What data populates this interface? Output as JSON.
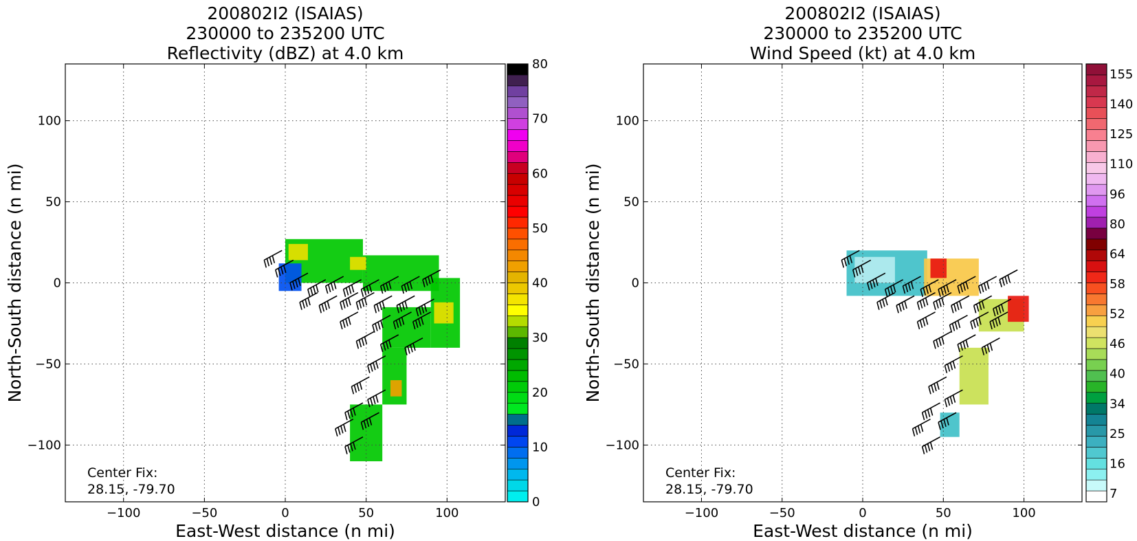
{
  "chart_data": [
    {
      "type": "heatmap",
      "title": [
        "200802I2 (ISAIAS)",
        "230000 to 235200 UTC",
        "Reflectivity (dBZ) at 4.0 km"
      ],
      "xlabel": "East-West distance (n mi)",
      "ylabel": "North-South distance (n mi)",
      "xlim": [
        -136,
        136
      ],
      "ylim": [
        -135,
        135
      ],
      "x_ticks": [
        -100,
        -50,
        0,
        50,
        100
      ],
      "y_ticks": [
        -100,
        -50,
        0,
        50,
        100
      ],
      "x_tick_labels": [
        "−100",
        "−50",
        "0",
        "50",
        "100"
      ],
      "y_tick_labels": [
        "−100",
        "−50",
        "0",
        "50",
        "100"
      ],
      "grid": true,
      "annotation": [
        "Center Fix:",
        "28.15, -79.70"
      ],
      "colorbar": {
        "label": "",
        "min": 0,
        "max": 80,
        "tick_values": [
          0,
          10,
          20,
          30,
          40,
          50,
          60,
          70,
          80
        ],
        "tick_labels": [
          "0",
          "10",
          "20",
          "30",
          "40",
          "50",
          "60",
          "70",
          "80"
        ],
        "colors": [
          "#00eeee",
          "#00d8e8",
          "#00b8ee",
          "#0096ee",
          "#006ef0",
          "#0046f0",
          "#0028d8",
          "#006e8c",
          "#00e820",
          "#00dc14",
          "#00cc08",
          "#00bc00",
          "#00a800",
          "#009400",
          "#008000",
          "#5cb800",
          "#b4dc00",
          "#ffff00",
          "#f4e400",
          "#ecc800",
          "#e4b400",
          "#f0a000",
          "#f48800",
          "#fa6e00",
          "#ff5000",
          "#ff2800",
          "#ff0000",
          "#ea0000",
          "#d80000",
          "#c80000",
          "#c80022",
          "#e0007c",
          "#f000c8",
          "#f000f0",
          "#d040e0",
          "#b050d0",
          "#9060c0",
          "#7040a0",
          "#402050",
          "#000000"
        ]
      },
      "field": {
        "value_colors": {
          "low": "#0050f0",
          "mid": "#00c800",
          "high": "#e8e000",
          "peak": "#f0a000"
        },
        "regions": [
          {
            "x": [
              0,
              48
            ],
            "y": [
              0,
              27
            ],
            "level": "mid"
          },
          {
            "x": [
              48,
              95
            ],
            "y": [
              -5,
              17
            ],
            "level": "mid"
          },
          {
            "x": [
              90,
              108
            ],
            "y": [
              -40,
              3
            ],
            "level": "mid"
          },
          {
            "x": [
              60,
              90
            ],
            "y": [
              -40,
              -15
            ],
            "level": "mid"
          },
          {
            "x": [
              60,
              75
            ],
            "y": [
              -75,
              -40
            ],
            "level": "mid"
          },
          {
            "x": [
              40,
              60
            ],
            "y": [
              -110,
              -75
            ],
            "level": "mid"
          },
          {
            "x": [
              -4,
              10
            ],
            "y": [
              -5,
              12
            ],
            "level": "low"
          },
          {
            "x": [
              2,
              14
            ],
            "y": [
              14,
              24
            ],
            "level": "high"
          },
          {
            "x": [
              40,
              50
            ],
            "y": [
              8,
              16
            ],
            "level": "high"
          },
          {
            "x": [
              92,
              104
            ],
            "y": [
              -25,
              -12
            ],
            "level": "high"
          },
          {
            "x": [
              65,
              72
            ],
            "y": [
              -70,
              -60
            ],
            "level": "peak"
          }
        ]
      },
      "wind_barbs": [
        {
          "x": -2,
          "y": 20
        },
        {
          "x": 5,
          "y": 14
        },
        {
          "x": 14,
          "y": 6
        },
        {
          "x": 25,
          "y": 2
        },
        {
          "x": 36,
          "y": 4
        },
        {
          "x": 47,
          "y": 2
        },
        {
          "x": 58,
          "y": 2
        },
        {
          "x": 70,
          "y": 4
        },
        {
          "x": 83,
          "y": 4
        },
        {
          "x": 96,
          "y": 8
        },
        {
          "x": 20,
          "y": -6
        },
        {
          "x": 32,
          "y": -8
        },
        {
          "x": 45,
          "y": -6
        },
        {
          "x": 55,
          "y": -6
        },
        {
          "x": 66,
          "y": -8
        },
        {
          "x": 80,
          "y": -8
        },
        {
          "x": 92,
          "y": -10
        },
        {
          "x": 45,
          "y": -18
        },
        {
          "x": 65,
          "y": -20
        },
        {
          "x": 78,
          "y": -18
        },
        {
          "x": 90,
          "y": -18
        },
        {
          "x": 55,
          "y": -30
        },
        {
          "x": 70,
          "y": -32
        },
        {
          "x": 85,
          "y": -34
        },
        {
          "x": 62,
          "y": -45
        },
        {
          "x": 52,
          "y": -58
        },
        {
          "x": 62,
          "y": -66
        },
        {
          "x": 48,
          "y": -74
        },
        {
          "x": 58,
          "y": -80
        },
        {
          "x": 42,
          "y": -84
        },
        {
          "x": 48,
          "y": -95
        }
      ]
    },
    {
      "type": "heatmap",
      "title": [
        "200802I2 (ISAIAS)",
        "230000 to 235200 UTC",
        "Wind Speed (kt) at 4.0 km"
      ],
      "xlabel": "East-West distance (n mi)",
      "ylabel": "North-South distance (n mi)",
      "xlim": [
        -136,
        136
      ],
      "ylim": [
        -135,
        135
      ],
      "x_ticks": [
        -100,
        -50,
        0,
        50,
        100
      ],
      "y_ticks": [
        -100,
        -50,
        0,
        50,
        100
      ],
      "x_tick_labels": [
        "−100",
        "−50",
        "0",
        "50",
        "100"
      ],
      "y_tick_labels": [
        "−100",
        "−50",
        "0",
        "50",
        "100"
      ],
      "grid": true,
      "annotation": [
        "Center Fix:",
        "28.15, -79.70"
      ],
      "colorbar": {
        "label": "",
        "tick_labels": [
          "7",
          "16",
          "25",
          "34",
          "40",
          "46",
          "52",
          "58",
          "64",
          "80",
          "96",
          "110",
          "125",
          "140",
          "155"
        ],
        "colors": [
          "#ffffff",
          "#c8fafa",
          "#8cf0f0",
          "#64e0e0",
          "#50c8d0",
          "#3cb0c0",
          "#2898a8",
          "#148494",
          "#007868",
          "#00a040",
          "#28b428",
          "#50c050",
          "#78d050",
          "#a8dc58",
          "#d0e460",
          "#ece070",
          "#f8d050",
          "#f8a040",
          "#f87830",
          "#f85020",
          "#f02818",
          "#d81010",
          "#b00808",
          "#800000",
          "#780040",
          "#a020b0",
          "#c040e0",
          "#d070f0",
          "#e098f0",
          "#f0b8f0",
          "#f8c8e8",
          "#f8b0d0",
          "#f898b0",
          "#f88090",
          "#f06870",
          "#e85058",
          "#d83850",
          "#c02848",
          "#a81840",
          "#901038"
        ]
      },
      "field": {
        "value_colors": {
          "calm": "#b4ecf0",
          "low": "#40c0c8",
          "mid": "#c8e050",
          "high": "#f8c848",
          "peak": "#e81810"
        },
        "regions": [
          {
            "x": [
              -10,
              40
            ],
            "y": [
              -8,
              20
            ],
            "level": "low"
          },
          {
            "x": [
              -5,
              20
            ],
            "y": [
              0,
              16
            ],
            "level": "calm"
          },
          {
            "x": [
              38,
              72
            ],
            "y": [
              -8,
              15
            ],
            "level": "high"
          },
          {
            "x": [
              42,
              52
            ],
            "y": [
              3,
              15
            ],
            "level": "peak"
          },
          {
            "x": [
              72,
              100
            ],
            "y": [
              -30,
              -10
            ],
            "level": "mid"
          },
          {
            "x": [
              90,
              103
            ],
            "y": [
              -24,
              -8
            ],
            "level": "peak"
          },
          {
            "x": [
              60,
              78
            ],
            "y": [
              -75,
              -40
            ],
            "level": "mid"
          },
          {
            "x": [
              48,
              60
            ],
            "y": [
              -95,
              -80
            ],
            "level": "low"
          }
        ]
      },
      "wind_barbs": [
        {
          "x": -2,
          "y": 20
        },
        {
          "x": 5,
          "y": 14
        },
        {
          "x": 14,
          "y": 6
        },
        {
          "x": 25,
          "y": 2
        },
        {
          "x": 36,
          "y": 4
        },
        {
          "x": 47,
          "y": 2
        },
        {
          "x": 58,
          "y": 2
        },
        {
          "x": 70,
          "y": 4
        },
        {
          "x": 83,
          "y": 4
        },
        {
          "x": 96,
          "y": 8
        },
        {
          "x": 20,
          "y": -6
        },
        {
          "x": 32,
          "y": -8
        },
        {
          "x": 45,
          "y": -6
        },
        {
          "x": 55,
          "y": -6
        },
        {
          "x": 66,
          "y": -8
        },
        {
          "x": 80,
          "y": -8
        },
        {
          "x": 92,
          "y": -10
        },
        {
          "x": 45,
          "y": -18
        },
        {
          "x": 65,
          "y": -20
        },
        {
          "x": 78,
          "y": -18
        },
        {
          "x": 90,
          "y": -18
        },
        {
          "x": 55,
          "y": -30
        },
        {
          "x": 70,
          "y": -32
        },
        {
          "x": 85,
          "y": -34
        },
        {
          "x": 62,
          "y": -45
        },
        {
          "x": 52,
          "y": -58
        },
        {
          "x": 62,
          "y": -66
        },
        {
          "x": 48,
          "y": -74
        },
        {
          "x": 58,
          "y": -80
        },
        {
          "x": 42,
          "y": -84
        },
        {
          "x": 48,
          "y": -95
        }
      ]
    }
  ]
}
